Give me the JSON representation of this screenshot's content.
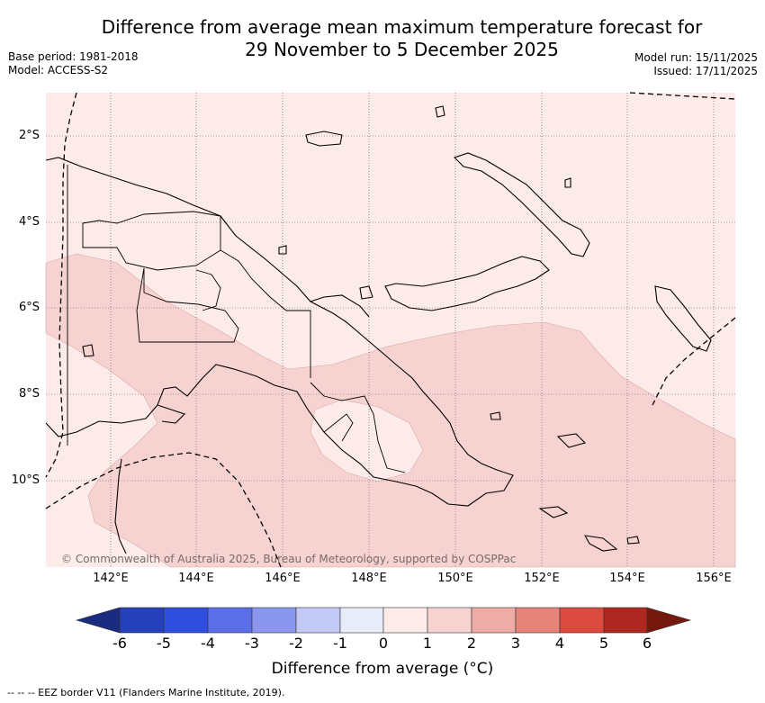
{
  "title_line1": "Difference from average mean maximum temperature forecast for",
  "title_line2": "29 November to 5 December 2025",
  "base_period": "Base period: 1981-2018",
  "model": "Model: ACCESS-S2",
  "model_run": "Model run: 15/11/2025",
  "issued": "Issued: 17/11/2025",
  "lat_labels": [
    "2°S",
    "4°S",
    "6°S",
    "8°S",
    "10°S"
  ],
  "lon_labels": [
    "142°E",
    "144°E",
    "146°E",
    "148°E",
    "150°E",
    "152°E",
    "154°E",
    "156°E"
  ],
  "copyright": "© Commonwealth of Australia 2025, Bureau of Meteorology, supported by COSPPac",
  "colorbar": {
    "ticks": [
      "-6",
      "-5",
      "-4",
      "-3",
      "-2",
      "-1",
      "0",
      "1",
      "2",
      "3",
      "4",
      "5",
      "6"
    ],
    "title": "Difference from average (°C)",
    "colors": [
      "#1b2b80",
      "#2540b8",
      "#2f4ee0",
      "#5a6ee6",
      "#8a97ec",
      "#c3c9f5",
      "#e8ecfa",
      "#fcebe8",
      "#f6d3d1",
      "#efaba6",
      "#e6837b",
      "#db4a3e",
      "#ad2820",
      "#75190f"
    ],
    "fill_land_colour": "#fcebe8",
    "warm_region_colour": "#f6d3d1"
  },
  "eez_note": "--  --  -- EEZ border V11 (Flanders Marine Institute, 2019)."
}
